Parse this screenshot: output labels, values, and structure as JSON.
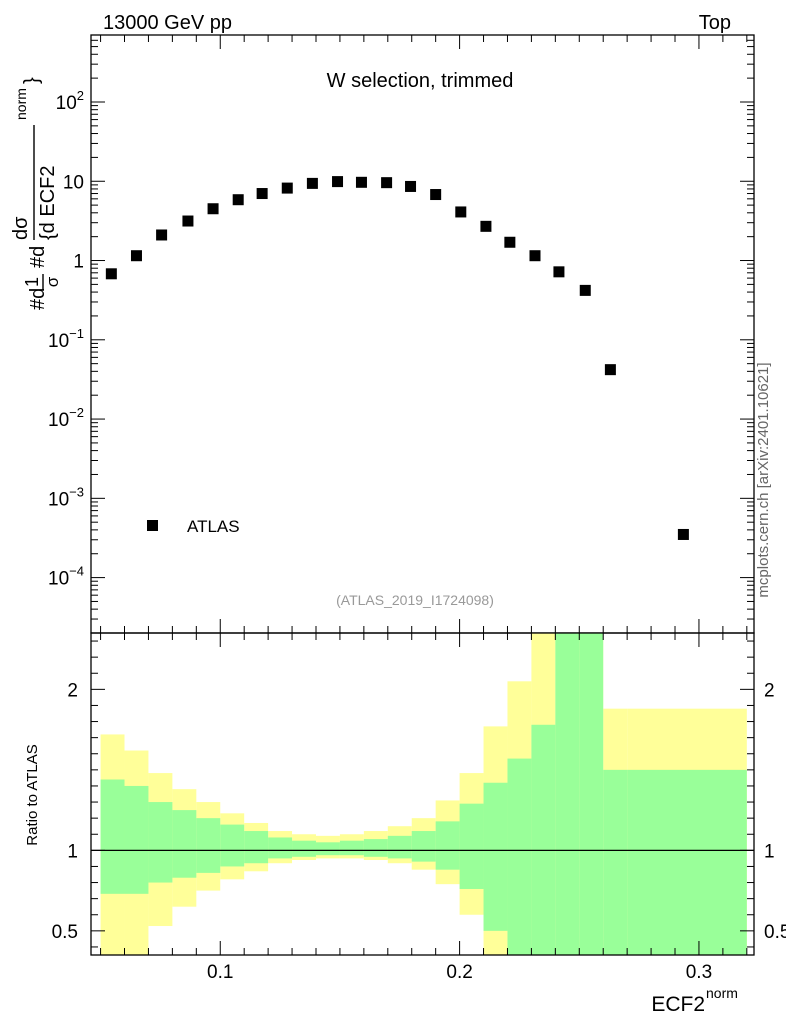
{
  "header": {
    "energy_label": "13000 GeV pp",
    "category_label": "Top",
    "watermark": "mcplots.cern.ch [arXiv:2401.10621]",
    "analysis_tag": "(ATLAS_2019_I1724098)"
  },
  "chart_data": [
    {
      "type": "scatter",
      "panel": "main",
      "title": "W selection, trimmed",
      "ylabel_parts": {
        "a": "#d",
        "b": "1",
        "c": "σ",
        "d": "#d",
        "e": "dσ",
        "f": "{d ECF2",
        "g": "norm",
        "h": "}"
      },
      "yscale": "log",
      "ylim": [
        2e-05,
        700
      ],
      "xlim": [
        0.046,
        0.323
      ],
      "y_tick_labels": [
        {
          "value": 100,
          "base": "10",
          "exp": "2"
        },
        {
          "value": 10,
          "base": "10",
          "exp": ""
        },
        {
          "value": 1,
          "base": "1",
          "exp": ""
        },
        {
          "value": 0.1,
          "base": "10",
          "exp": "−1"
        },
        {
          "value": 0.01,
          "base": "10",
          "exp": "−2"
        },
        {
          "value": 0.001,
          "base": "10",
          "exp": "−3"
        },
        {
          "value": 0.0001,
          "base": "10",
          "exp": "−4"
        }
      ],
      "legend": {
        "label": "ATLAS",
        "position": "bottom-left"
      },
      "series": [
        {
          "name": "ATLAS",
          "x": [
            0.0545,
            0.065,
            0.0755,
            0.0865,
            0.097,
            0.1075,
            0.1175,
            0.128,
            0.1385,
            0.149,
            0.159,
            0.1695,
            0.1795,
            0.19,
            0.2005,
            0.211,
            0.221,
            0.2315,
            0.2415,
            0.2525,
            0.263,
            0.2935
          ],
          "y": [
            0.68,
            1.15,
            2.1,
            3.15,
            4.5,
            5.85,
            7.0,
            8.2,
            9.4,
            9.9,
            9.7,
            9.6,
            8.6,
            6.8,
            4.1,
            2.7,
            1.7,
            1.15,
            0.72,
            0.42,
            0.042,
            0.00035
          ]
        }
      ]
    },
    {
      "type": "area",
      "panel": "ratio",
      "ylabel": "Ratio to ATLAS",
      "xlabel": "ECF2",
      "xlabel_sup": "norm",
      "ylim": [
        0.35,
        2.35
      ],
      "xlim": [
        0.046,
        0.323
      ],
      "x_tick_labels": [
        {
          "value": 0.1,
          "label": "0.1"
        },
        {
          "value": 0.2,
          "label": "0.2"
        },
        {
          "value": 0.3,
          "label": "0.3"
        }
      ],
      "y_tick_labels": [
        {
          "value": 2,
          "label": "2"
        },
        {
          "value": 1,
          "label": "1"
        },
        {
          "value": 0.5,
          "label": "0.5"
        }
      ],
      "reference_line": 1,
      "bins": [
        0.05,
        0.06,
        0.07,
        0.08,
        0.09,
        0.1,
        0.11,
        0.12,
        0.13,
        0.14,
        0.15,
        0.16,
        0.17,
        0.18,
        0.19,
        0.2,
        0.21,
        0.22,
        0.23,
        0.24,
        0.25,
        0.26,
        0.27,
        0.32
      ],
      "bands": [
        {
          "name": "total uncertainty",
          "color": "#ffff99",
          "lo": [
            0.35,
            0.35,
            0.53,
            0.65,
            0.75,
            0.82,
            0.87,
            0.92,
            0.94,
            0.95,
            0.95,
            0.94,
            0.92,
            0.88,
            0.79,
            0.6,
            0.35,
            0.35,
            0.35,
            0.35,
            0.35,
            0.35,
            0.35
          ],
          "hi": [
            1.72,
            1.62,
            1.48,
            1.38,
            1.3,
            1.23,
            1.17,
            1.12,
            1.1,
            1.09,
            1.1,
            1.12,
            1.15,
            1.2,
            1.31,
            1.48,
            1.77,
            2.05,
            2.35,
            2.35,
            2.35,
            1.88,
            1.88
          ]
        },
        {
          "name": "statistical uncertainty",
          "color": "#99ff99",
          "lo": [
            0.73,
            0.73,
            0.8,
            0.83,
            0.86,
            0.9,
            0.92,
            0.95,
            0.96,
            0.97,
            0.97,
            0.96,
            0.95,
            0.93,
            0.88,
            0.76,
            0.5,
            0.35,
            0.35,
            0.35,
            0.35,
            0.35,
            0.35
          ],
          "hi": [
            1.44,
            1.4,
            1.3,
            1.25,
            1.2,
            1.16,
            1.12,
            1.08,
            1.06,
            1.05,
            1.06,
            1.07,
            1.09,
            1.12,
            1.18,
            1.29,
            1.42,
            1.57,
            1.78,
            2.35,
            2.35,
            1.5,
            1.5
          ]
        }
      ]
    }
  ]
}
